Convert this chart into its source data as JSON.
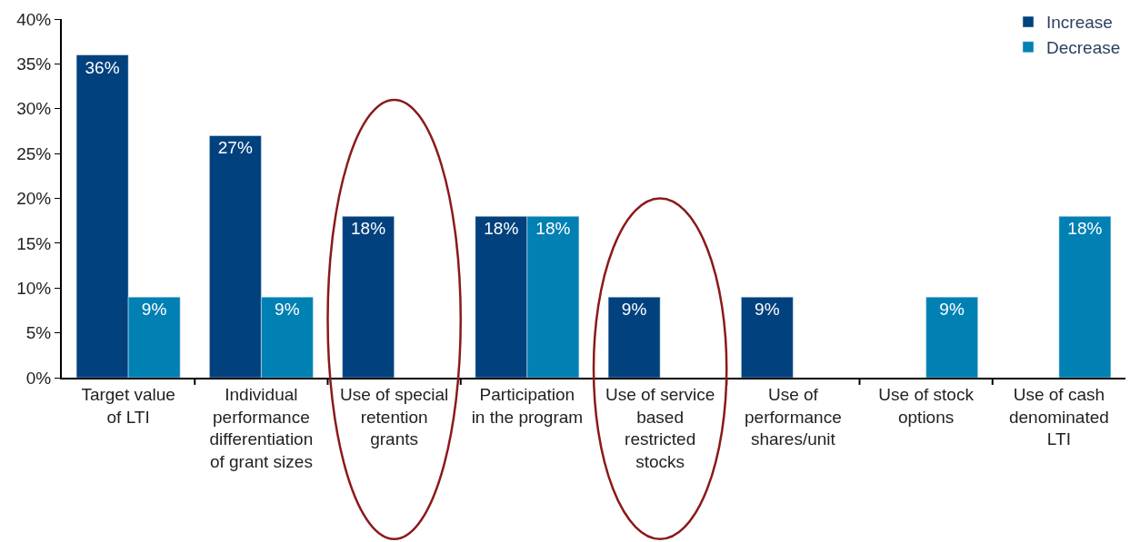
{
  "chart_data": {
    "type": "bar",
    "categories": [
      "Target value of LTI",
      "Individual performance differentiation of grant sizes",
      "Use of special retention grants",
      "Participation in the program",
      "Use of service based restricted stocks",
      "Use of performance shares/unit",
      "Use of stock options",
      "Use of cash denominated LTI"
    ],
    "series": [
      {
        "name": "Increase",
        "color": "#00417e",
        "values": [
          36,
          27,
          18,
          18,
          9,
          9,
          null,
          null
        ],
        "value_labels": [
          "36%",
          "27%",
          "18%",
          "18%",
          "9%",
          "9%",
          null,
          null
        ]
      },
      {
        "name": "Decrease",
        "color": "#0080b3",
        "values": [
          9,
          9,
          null,
          18,
          null,
          null,
          9,
          18
        ],
        "value_labels": [
          "9%",
          "9%",
          null,
          "18%",
          null,
          null,
          "9%",
          "18%"
        ]
      }
    ],
    "ylim": [
      0,
      40
    ],
    "yticks": [
      {
        "value": 0,
        "label": "0%"
      },
      {
        "value": 5,
        "label": "5%"
      },
      {
        "value": 10,
        "label": "10%"
      },
      {
        "value": 15,
        "label": "15%"
      },
      {
        "value": 20,
        "label": "20%"
      },
      {
        "value": 25,
        "label": "25%"
      },
      {
        "value": 30,
        "label": "30%"
      },
      {
        "value": 35,
        "label": "35%"
      },
      {
        "value": 40,
        "label": "40%"
      }
    ],
    "legend": "top right"
  }
}
